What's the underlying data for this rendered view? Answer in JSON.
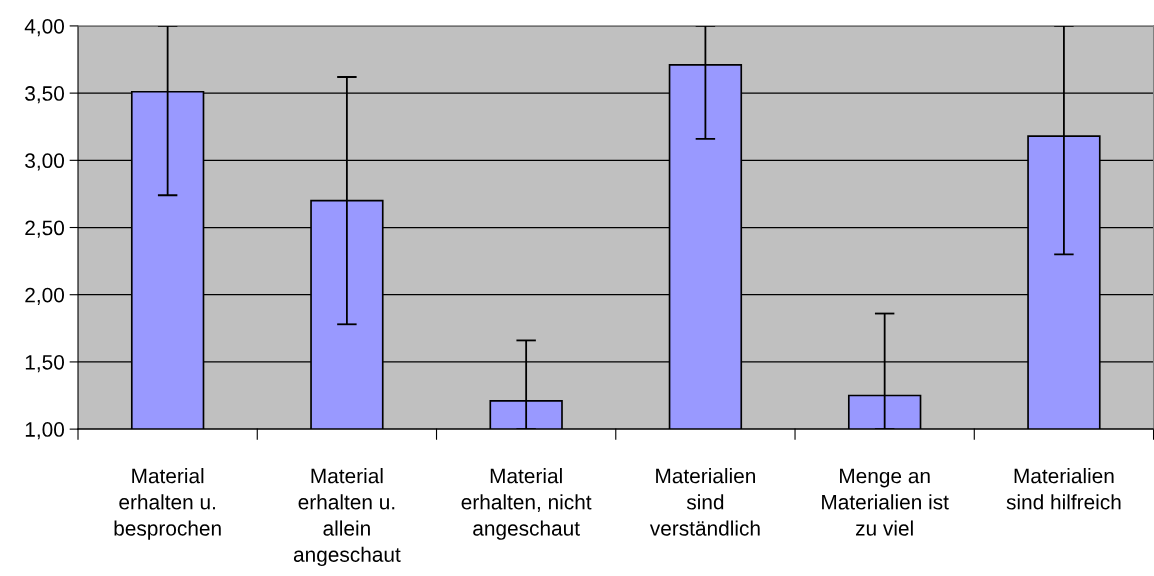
{
  "chart_data": {
    "type": "bar",
    "categories": [
      "Material\nerhalten u.\nbesprochen",
      "Material\nerhalten u.\nallein\nangeschaut",
      "Material\nerhalten, nicht\nangeschaut",
      "Materialien\nsind\nverständlich",
      "Menge an\nMaterialien ist\nzu viel",
      "Materialien\nsind hilfreich"
    ],
    "values": [
      3.51,
      2.7,
      1.21,
      3.71,
      1.25,
      3.18
    ],
    "errors": [
      [
        2.74,
        4.0
      ],
      0.92,
      [
        1.0,
        1.66
      ],
      [
        3.16,
        4.0
      ],
      [
        1.0,
        1.86
      ],
      [
        2.3,
        4.0
      ]
    ],
    "color": "#9999ff",
    "ylim": [
      1.0,
      4.0
    ],
    "yticks": [
      {
        "value": 1.0,
        "label": "1,00"
      },
      {
        "value": 1.5,
        "label": "1,50"
      },
      {
        "value": 2.0,
        "label": "2,00"
      },
      {
        "value": 2.5,
        "label": "2,50"
      },
      {
        "value": 3.0,
        "label": "3,00"
      },
      {
        "value": 3.5,
        "label": "3,50"
      },
      {
        "value": 4.0,
        "label": "4,00"
      }
    ],
    "grid": "y",
    "legend": false
  }
}
